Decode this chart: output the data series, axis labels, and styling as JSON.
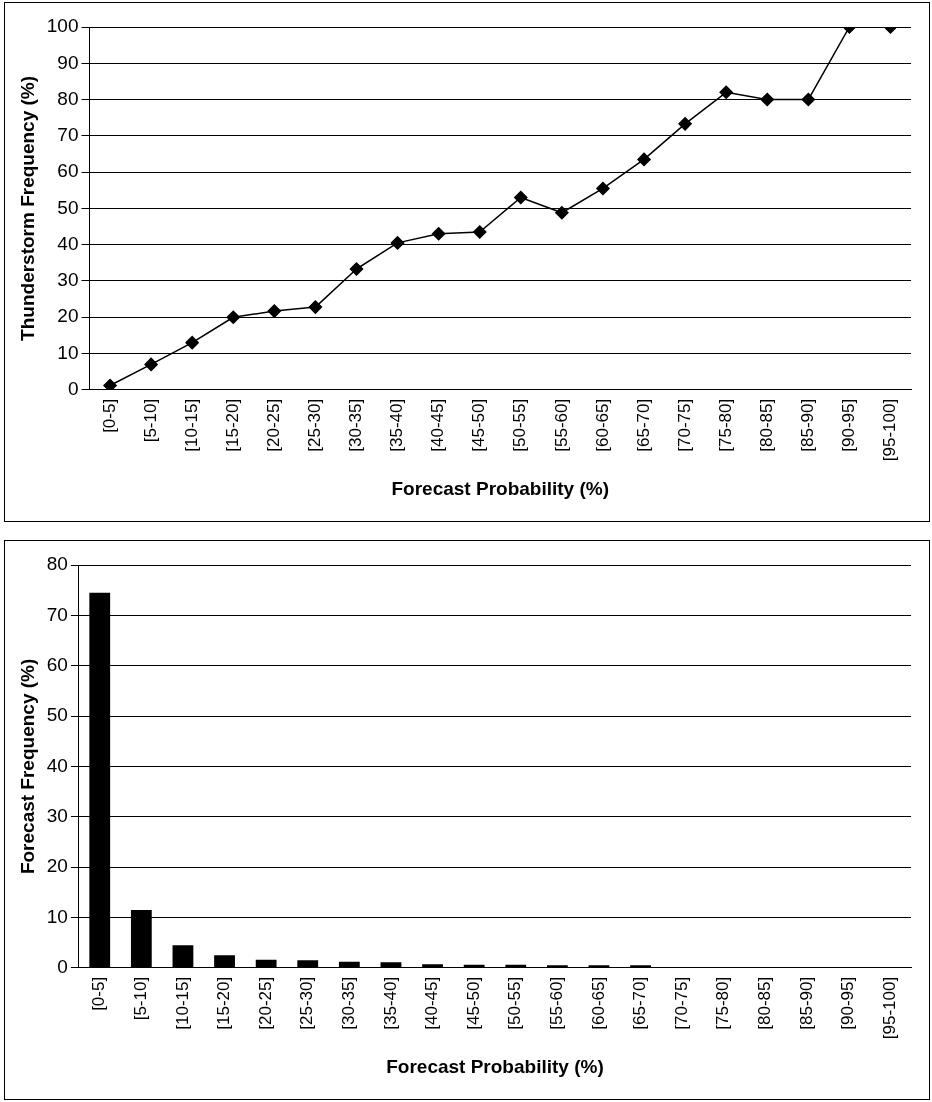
{
  "chart_data": [
    {
      "type": "line",
      "xlabel": "Forecast Probability (%)",
      "ylabel": "Thunderstorm Frequency (%)",
      "categories": [
        "[0-5]",
        "[5-10]",
        "[10-15]",
        "[15-20]",
        "[20-25]",
        "[25-30]",
        "[30-35]",
        "[35-40]",
        "[40-45]",
        "[45-50]",
        "[50-55]",
        "[55-60]",
        "[60-65]",
        "[65-70]",
        "[70-75]",
        "[75-80]",
        "[80-85]",
        "[85-90]",
        "[90-95]",
        "[95-100]"
      ],
      "series": [
        {
          "color": "#000000",
          "values": [
            1.2,
            7,
            13,
            20,
            21.7,
            22.8,
            33.3,
            40.5,
            43,
            43.5,
            53,
            48.8,
            55.5,
            63.5,
            73.3,
            82,
            80,
            80,
            100,
            100
          ]
        }
      ],
      "ylim": [
        0,
        100
      ],
      "yticks": [
        0,
        10,
        20,
        30,
        40,
        50,
        60,
        70,
        80,
        90,
        100
      ],
      "grid": "y",
      "legend": false,
      "marker": "diamond",
      "line_style": "solid"
    },
    {
      "type": "bar",
      "xlabel": "Forecast Probability (%)",
      "ylabel": "Forecast Frequency (%)",
      "categories": [
        "[0-5]",
        "[5-10]",
        "[10-15]",
        "[15-20]",
        "[20-25]",
        "[25-30]",
        "[30-35]",
        "[35-40]",
        "[40-45]",
        "[45-50]",
        "[50-55]",
        "[55-60]",
        "[60-65]",
        "[65-70]",
        "[70-75]",
        "[75-80]",
        "[80-85]",
        "[85-90]",
        "[90-95]",
        "[95-100]"
      ],
      "series": [
        {
          "color": "#000000",
          "values": [
            74.5,
            11.5,
            4.5,
            2.5,
            1.6,
            1.5,
            1.2,
            1.1,
            0.7,
            0.6,
            0.6,
            0.5,
            0.5,
            0.5,
            0,
            0,
            0,
            0,
            0,
            0
          ]
        }
      ],
      "ylim": [
        0,
        80
      ],
      "yticks": [
        0,
        10,
        20,
        30,
        40,
        50,
        60,
        70,
        80
      ],
      "grid": "y",
      "legend": false
    }
  ]
}
